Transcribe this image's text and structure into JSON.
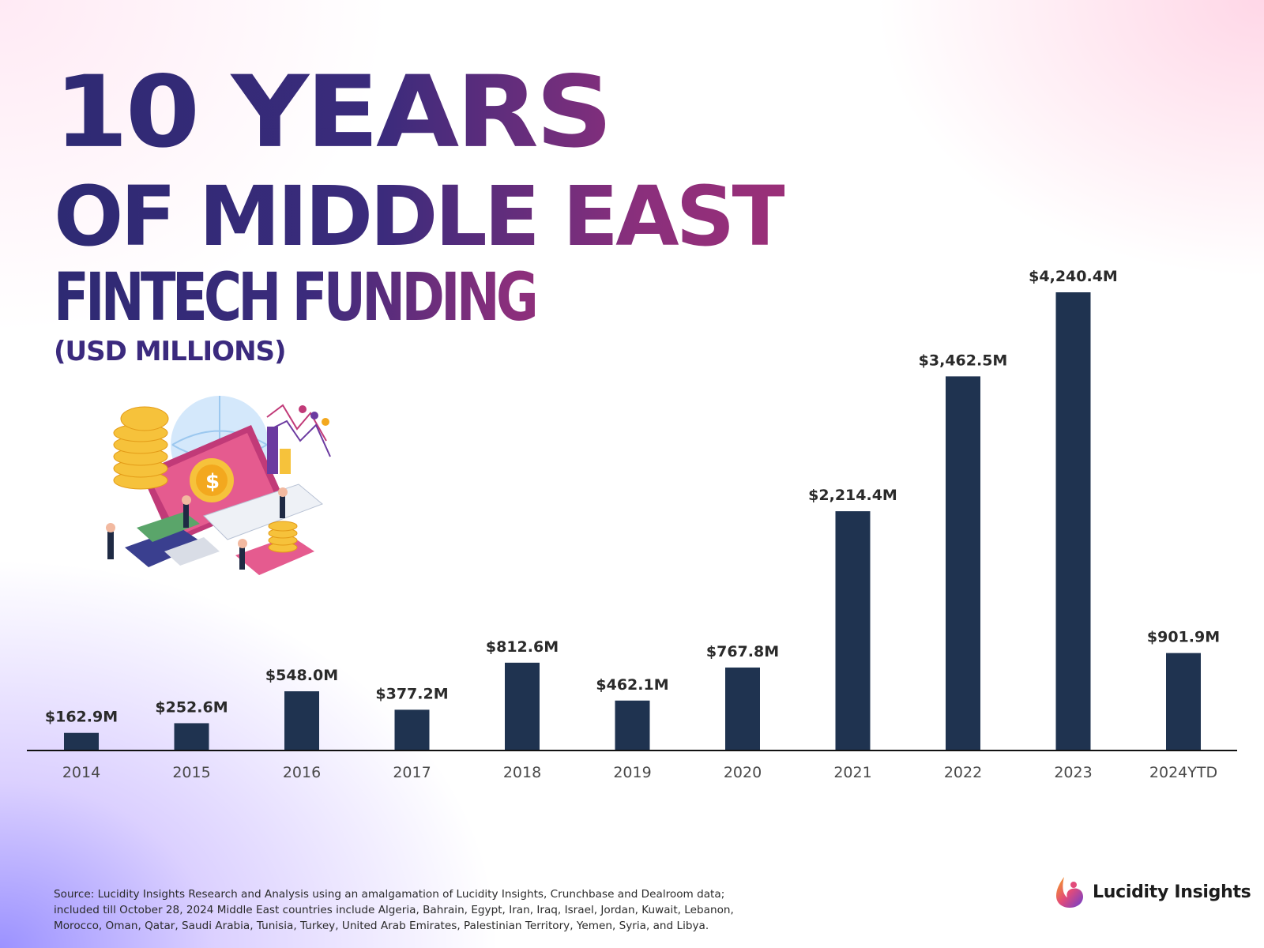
{
  "title": {
    "line1": "10 YEARS",
    "line2": "OF MIDDLE EAST",
    "line3": "FINTECH FUNDING",
    "line4": "(USD MILLIONS)"
  },
  "chart_data": {
    "type": "bar",
    "categories": [
      "2014",
      "2015",
      "2016",
      "2017",
      "2018",
      "2019",
      "2020",
      "2021",
      "2022",
      "2023",
      "2024YTD"
    ],
    "values": [
      162.9,
      252.6,
      548.0,
      377.2,
      812.6,
      462.1,
      767.8,
      2214.4,
      3462.5,
      4240.4,
      901.9
    ],
    "value_labels": [
      "$162.9M",
      "$252.6M",
      "$548.0M",
      "$377.2M",
      "$812.6M",
      "$462.1M",
      "$767.8M",
      "$2,214.4M",
      "$3,462.5M",
      "$4,240.4M",
      "$901.9M"
    ],
    "title": "10 YEARS OF MIDDLE EAST FINTECH FUNDING",
    "ylabel": "(USD MILLIONS)",
    "xlabel": "",
    "ylim": [
      0,
      4240.4
    ],
    "grid": false,
    "bar_color": "#1f3350"
  },
  "footnote": "Source:  Lucidity Insights Research and Analysis using an amalgamation of Lucidity Insights, Crunchbase and Dealroom data; included till October 28, 2024 Middle East countries include Algeria, Bahrain, Egypt, Iran, Iraq, Israel, Jordan, Kuwait, Lebanon, Morocco, Oman, Qatar, Saudi Arabia, Tunisia, Turkey, United Arab Emirates, Palestinian Territory, Yemen, Syria, and Libya.",
  "brand": {
    "name": "Lucidity Insights",
    "logo_icon": "lucidity-logo-icon"
  },
  "illustration": {
    "icon": "fintech-isometric-illustration"
  }
}
